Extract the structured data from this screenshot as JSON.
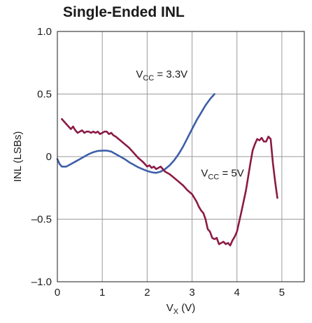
{
  "chart_data": {
    "type": "line",
    "title": "Single-Ended INL",
    "xlabel": {
      "main": "V",
      "sub": "X",
      "unit": " (V)"
    },
    "ylabel": "INL (LSBs)",
    "xlim": [
      0,
      5.5
    ],
    "ylim": [
      -1.0,
      1.0
    ],
    "grid": true,
    "xticks": [
      0,
      1,
      2,
      3,
      4,
      5
    ],
    "xtick_labels": [
      "0",
      "1",
      "2",
      "3",
      "4",
      "5"
    ],
    "yticks": [
      1.0,
      0.5,
      0,
      -0.5,
      -1.0
    ],
    "ytick_labels": [
      "1.0",
      "0.5",
      "0",
      "–0.5",
      "–1.0"
    ],
    "series": [
      {
        "name": "VCC = 3.3V",
        "label_main": "V",
        "label_sub": "CC",
        "label_rest": " = 3.3V",
        "label_pos": [
          1.75,
          0.63
        ],
        "color": "#3d5fa8",
        "x": [
          0.0,
          0.05,
          0.1,
          0.15,
          0.2,
          0.3,
          0.4,
          0.5,
          0.6,
          0.7,
          0.8,
          0.9,
          1.0,
          1.1,
          1.2,
          1.3,
          1.4,
          1.5,
          1.6,
          1.7,
          1.8,
          1.9,
          2.0,
          2.1,
          2.2,
          2.3,
          2.4,
          2.5,
          2.6,
          2.7,
          2.8,
          2.9,
          3.0,
          3.1,
          3.2,
          3.3,
          3.4,
          3.5
        ],
        "y": [
          -0.02,
          -0.06,
          -0.08,
          -0.08,
          -0.08,
          -0.06,
          -0.04,
          -0.02,
          0.0,
          0.02,
          0.035,
          0.045,
          0.048,
          0.048,
          0.04,
          0.02,
          0.0,
          -0.02,
          -0.045,
          -0.065,
          -0.085,
          -0.1,
          -0.115,
          -0.125,
          -0.13,
          -0.12,
          -0.1,
          -0.07,
          -0.03,
          0.02,
          0.08,
          0.15,
          0.22,
          0.29,
          0.35,
          0.41,
          0.46,
          0.5
        ]
      },
      {
        "name": "VCC = 5V",
        "label_main": "V",
        "label_sub": "CC",
        "label_rest": " = 5V",
        "label_pos": [
          3.2,
          -0.16
        ],
        "color": "#8b1a45",
        "x": [
          0.1,
          0.15,
          0.2,
          0.25,
          0.3,
          0.35,
          0.4,
          0.45,
          0.5,
          0.55,
          0.6,
          0.65,
          0.7,
          0.75,
          0.8,
          0.85,
          0.9,
          0.95,
          1.0,
          1.05,
          1.1,
          1.15,
          1.2,
          1.25,
          1.3,
          1.4,
          1.5,
          1.6,
          1.7,
          1.8,
          1.9,
          1.95,
          2.0,
          2.05,
          2.1,
          2.15,
          2.2,
          2.25,
          2.3,
          2.35,
          2.4,
          2.5,
          2.6,
          2.7,
          2.8,
          2.9,
          3.0,
          3.05,
          3.1,
          3.15,
          3.2,
          3.25,
          3.3,
          3.35,
          3.4,
          3.45,
          3.5,
          3.55,
          3.6,
          3.65,
          3.7,
          3.75,
          3.8,
          3.85,
          3.9,
          3.95,
          4.0,
          4.05,
          4.1,
          4.2,
          4.3,
          4.35,
          4.4,
          4.45,
          4.5,
          4.55,
          4.6,
          4.65,
          4.7,
          4.75,
          4.8,
          4.85,
          4.9
        ],
        "y": [
          0.3,
          0.28,
          0.26,
          0.24,
          0.22,
          0.24,
          0.21,
          0.19,
          0.2,
          0.21,
          0.19,
          0.2,
          0.2,
          0.19,
          0.2,
          0.19,
          0.2,
          0.18,
          0.19,
          0.2,
          0.2,
          0.18,
          0.19,
          0.17,
          0.16,
          0.13,
          0.1,
          0.07,
          0.03,
          -0.01,
          -0.04,
          -0.06,
          -0.08,
          -0.07,
          -0.09,
          -0.08,
          -0.1,
          -0.09,
          -0.08,
          -0.1,
          -0.12,
          -0.14,
          -0.17,
          -0.2,
          -0.23,
          -0.27,
          -0.3,
          -0.33,
          -0.36,
          -0.4,
          -0.43,
          -0.45,
          -0.5,
          -0.58,
          -0.6,
          -0.65,
          -0.66,
          -0.65,
          -0.7,
          -0.69,
          -0.68,
          -0.7,
          -0.69,
          -0.71,
          -0.67,
          -0.64,
          -0.6,
          -0.52,
          -0.44,
          -0.27,
          -0.05,
          0.05,
          0.1,
          0.14,
          0.13,
          0.15,
          0.12,
          0.12,
          0.16,
          0.14,
          -0.05,
          -0.2,
          -0.33
        ]
      }
    ]
  }
}
